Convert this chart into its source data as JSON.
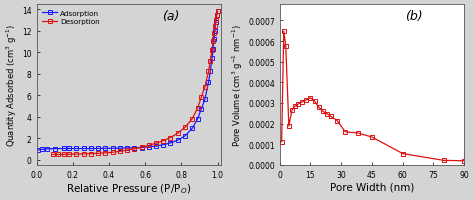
{
  "panel_a": {
    "label": "(a)",
    "xlabel": "Relative Pressure (P/P$_O$)",
    "ylabel": "Quantity Adsorbed (cm$^3$ g$^{-1}$)",
    "xlim": [
      0.0,
      1.02
    ],
    "ylim": [
      -0.5,
      14.5
    ],
    "yticks": [
      0,
      2,
      4,
      6,
      8,
      10,
      12,
      14
    ],
    "xticks": [
      0.0,
      0.2,
      0.4,
      0.6,
      0.8,
      1.0
    ],
    "adsorption_x": [
      0.01,
      0.03,
      0.06,
      0.1,
      0.15,
      0.18,
      0.22,
      0.26,
      0.3,
      0.34,
      0.38,
      0.42,
      0.46,
      0.5,
      0.54,
      0.58,
      0.62,
      0.66,
      0.7,
      0.74,
      0.78,
      0.82,
      0.86,
      0.89,
      0.91,
      0.93,
      0.95,
      0.96,
      0.97,
      0.975,
      0.98,
      0.985,
      0.99,
      0.995,
      1.0
    ],
    "adsorption_y": [
      0.88,
      0.95,
      1.0,
      1.02,
      1.03,
      1.03,
      1.03,
      1.03,
      1.03,
      1.04,
      1.04,
      1.05,
      1.06,
      1.08,
      1.1,
      1.12,
      1.18,
      1.25,
      1.38,
      1.55,
      1.8,
      2.2,
      2.9,
      3.8,
      4.7,
      5.6,
      7.2,
      8.2,
      9.5,
      10.3,
      11.2,
      12.0,
      12.8,
      13.5,
      13.8
    ],
    "desorption_x": [
      0.09,
      0.12,
      0.15,
      0.18,
      0.22,
      0.26,
      0.3,
      0.34,
      0.38,
      0.42,
      0.46,
      0.5,
      0.54,
      0.58,
      0.62,
      0.66,
      0.7,
      0.74,
      0.78,
      0.82,
      0.86,
      0.89,
      0.91,
      0.93,
      0.95,
      0.96,
      0.97,
      0.975,
      0.98,
      0.985,
      0.99,
      0.995,
      1.0
    ],
    "desorption_y": [
      0.48,
      0.47,
      0.48,
      0.49,
      0.51,
      0.53,
      0.55,
      0.58,
      0.62,
      0.68,
      0.76,
      0.88,
      1.0,
      1.15,
      1.32,
      1.52,
      1.75,
      2.05,
      2.45,
      3.0,
      3.8,
      4.8,
      5.8,
      6.8,
      8.2,
      9.2,
      10.2,
      11.0,
      11.8,
      12.4,
      13.0,
      13.5,
      13.8
    ],
    "adsorption_color": "#1a1aff",
    "desorption_color": "#dd1111",
    "bg_color": "#d4d4d4",
    "legend_adsorption": "Adsorption",
    "legend_desorption": "Desorption"
  },
  "panel_b": {
    "label": "(b)",
    "xlabel": "Pore Width (nm)",
    "ylabel": "Pore Volume (cm$^3$ g$^{-1}$ nm$^{-1}$)",
    "xlim": [
      0,
      90
    ],
    "ylim": [
      0.0,
      0.00078
    ],
    "yticks": [
      0.0,
      0.0001,
      0.0002,
      0.0003,
      0.0004,
      0.0005,
      0.0006,
      0.0007
    ],
    "xticks": [
      0,
      15,
      30,
      45,
      60,
      75,
      90
    ],
    "pore_x": [
      1.0,
      2.0,
      3.0,
      4.5,
      6.0,
      7.5,
      9.0,
      11.0,
      13.0,
      15.0,
      17.0,
      19.0,
      21.0,
      23.0,
      25.0,
      28.0,
      32.0,
      38.0,
      45.0,
      60.0,
      80.0,
      90.0
    ],
    "pore_y": [
      0.000112,
      0.000648,
      0.000575,
      0.000188,
      0.000265,
      0.000285,
      0.000295,
      0.000305,
      0.000315,
      0.000325,
      0.00031,
      0.00028,
      0.00026,
      0.000248,
      0.000235,
      0.000215,
      0.00016,
      0.000155,
      0.000135,
      5.5e-05,
      2.2e-05,
      2e-05
    ],
    "line_color": "#dd1111",
    "bg_color": "#ffffff"
  },
  "fig_bg": "#d4d4d4"
}
